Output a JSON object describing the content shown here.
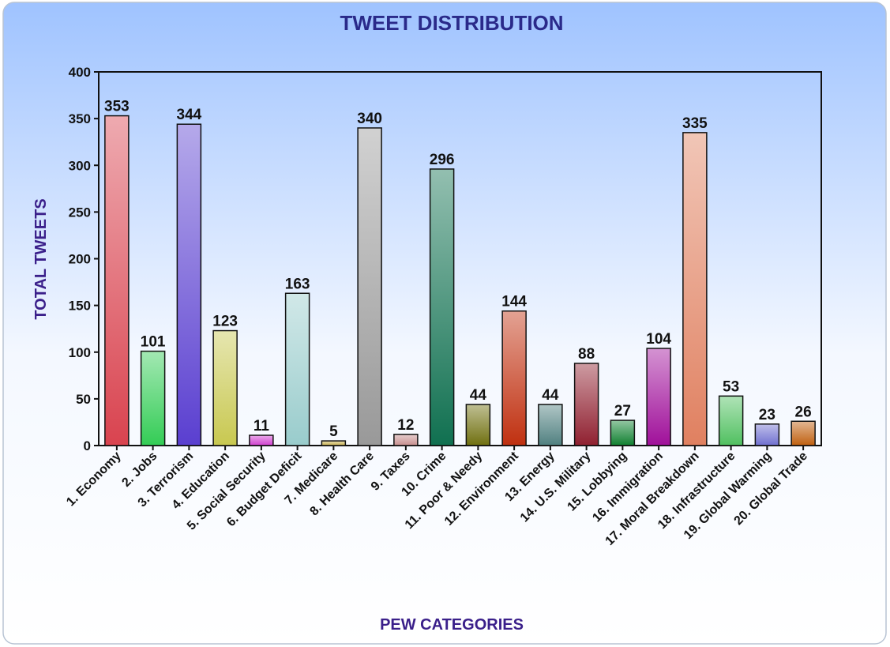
{
  "chart_data": {
    "type": "bar",
    "title": "TWEET DISTRIBUTION",
    "x_label": "PEW CATEGORIES",
    "y_label": "TOTAL TWEETS",
    "categories": [
      "1. Economy",
      "2. Jobs",
      "3. Terrorism",
      "4. Education",
      "5. Social Security",
      "6. Budget Deficit",
      "7. Medicare",
      "8. Health Care",
      "9. Taxes",
      "10. Crime",
      "11. Poor & Needy",
      "12. Environment",
      "13. Energy",
      "14. U.S. Military",
      "15. Lobbying",
      "16. Immigration",
      "17. Moral Breakdown",
      "18. Infrastructure",
      "19. Global Warming",
      "20. Global Trade"
    ],
    "values": [
      353,
      101,
      344,
      123,
      11,
      163,
      5,
      340,
      12,
      296,
      44,
      144,
      44,
      88,
      27,
      104,
      335,
      53,
      23,
      26
    ],
    "colors": [
      "#d9434f",
      "#33cc55",
      "#5a3fd0",
      "#c8c850",
      "#d040d0",
      "#99cccc",
      "#c8b050",
      "#999999",
      "#c89090",
      "#107050",
      "#707010",
      "#c03010",
      "#508080",
      "#902030",
      "#108030",
      "#a0109a",
      "#e08060",
      "#50c060",
      "#7070d0",
      "#c06010"
    ],
    "ylim": [
      0,
      400
    ],
    "yticks": [
      0,
      50,
      100,
      150,
      200,
      250,
      300,
      350,
      400
    ],
    "grid": false
  }
}
